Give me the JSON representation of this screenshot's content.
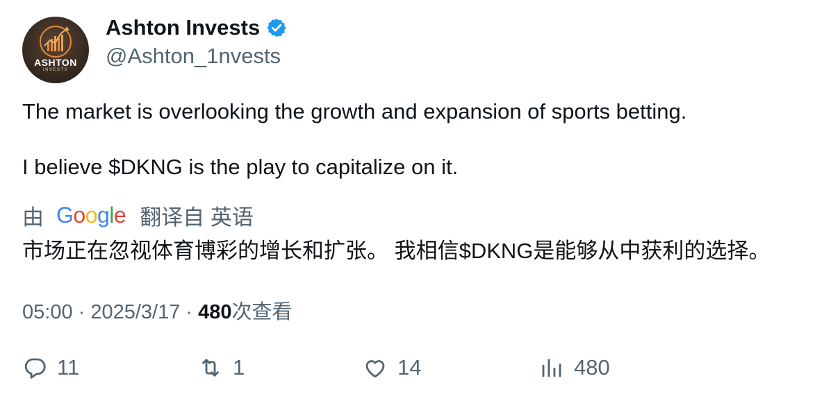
{
  "author": {
    "display_name": "Ashton Invests",
    "handle": "@Ashton_1nvests",
    "verified_icon": "verified-badge-icon",
    "verified_color": "#1d9bf0",
    "avatar": {
      "title": "ASHTON",
      "subtitle": "INVESTS"
    }
  },
  "tweet": {
    "line1": "The market is overlooking the growth and expansion of sports betting.",
    "line2": "I believe $DKNG is the play to capitalize on it."
  },
  "translation": {
    "prefix": "由",
    "provider_letters": [
      "G",
      "o",
      "o",
      "g",
      "l",
      "e"
    ],
    "suffix": "翻译自 英语",
    "text": "市场正在忽视体育博彩的增长和扩张。 我相信$DKNG是能够从中获利的选择。"
  },
  "meta": {
    "time": "05:00",
    "separator": " · ",
    "date": "2025/3/17",
    "views_count": "480",
    "views_label": "次查看"
  },
  "actions": {
    "replies": "11",
    "retweets": "1",
    "likes": "14",
    "views": "480"
  },
  "colors": {
    "text": "#0f1419",
    "secondary": "#536471",
    "google_blue": "#4285F4",
    "google_red": "#EA4335",
    "google_yellow": "#FBBC05",
    "google_green": "#34A853"
  }
}
